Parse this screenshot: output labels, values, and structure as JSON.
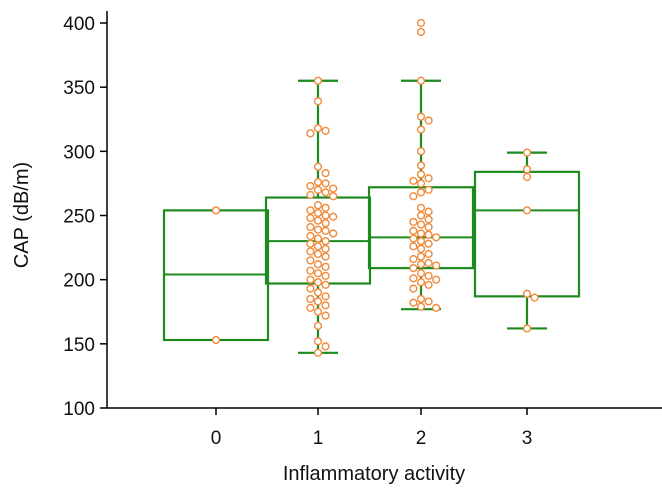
{
  "chart_data": {
    "type": "box",
    "xlabel": "Inflammatory activity",
    "ylabel": "CAP (dB/m)",
    "ylim": [
      100,
      400
    ],
    "yticks": [
      "100",
      "150",
      "200",
      "250",
      "300",
      "350",
      "400"
    ],
    "categories": [
      "0",
      "1",
      "2",
      "3"
    ],
    "box_color": "#1e8a1e",
    "point_color": "#f08a3a",
    "grid": false,
    "legend": "none",
    "boxes": [
      {
        "category": "0",
        "whisker_low": 153,
        "q1": 153,
        "median": 204,
        "q3": 254,
        "whisker_high": 254
      },
      {
        "category": "1",
        "whisker_low": 143,
        "q1": 197,
        "median": 230,
        "q3": 264,
        "whisker_high": 355
      },
      {
        "category": "2",
        "whisker_low": 177,
        "q1": 209,
        "median": 233,
        "q3": 272,
        "whisker_high": 355
      },
      {
        "category": "3",
        "whisker_low": 162,
        "q1": 187,
        "median": 254,
        "q3": 284,
        "whisker_high": 299
      }
    ],
    "points": [
      {
        "category": "0",
        "values": [
          254,
          153
        ]
      },
      {
        "category": "1",
        "values": [
          355,
          339,
          318,
          316,
          314,
          288,
          283,
          276,
          275,
          273,
          271,
          270,
          268,
          266,
          265,
          258,
          256,
          254,
          252,
          250,
          249,
          248,
          246,
          244,
          241,
          239,
          238,
          236,
          234,
          232,
          230,
          228,
          226,
          224,
          222,
          220,
          218,
          215,
          212,
          210,
          207,
          205,
          203,
          200,
          198,
          196,
          193,
          190,
          187,
          185,
          183,
          180,
          178,
          175,
          172,
          164,
          152,
          148,
          143
        ]
      },
      {
        "category": "2",
        "values": [
          400,
          393,
          355,
          327,
          324,
          317,
          300,
          289,
          282,
          279,
          277,
          275,
          270,
          268,
          265,
          256,
          253,
          250,
          247,
          245,
          243,
          241,
          238,
          236,
          235,
          233,
          232,
          230,
          228,
          226,
          224,
          220,
          218,
          216,
          213,
          212,
          211,
          209,
          205,
          203,
          201,
          200,
          198,
          196,
          193,
          185,
          183,
          182,
          179,
          178
        ]
      },
      {
        "category": "3",
        "values": [
          299,
          286,
          280,
          254,
          189,
          186,
          162
        ]
      }
    ]
  }
}
